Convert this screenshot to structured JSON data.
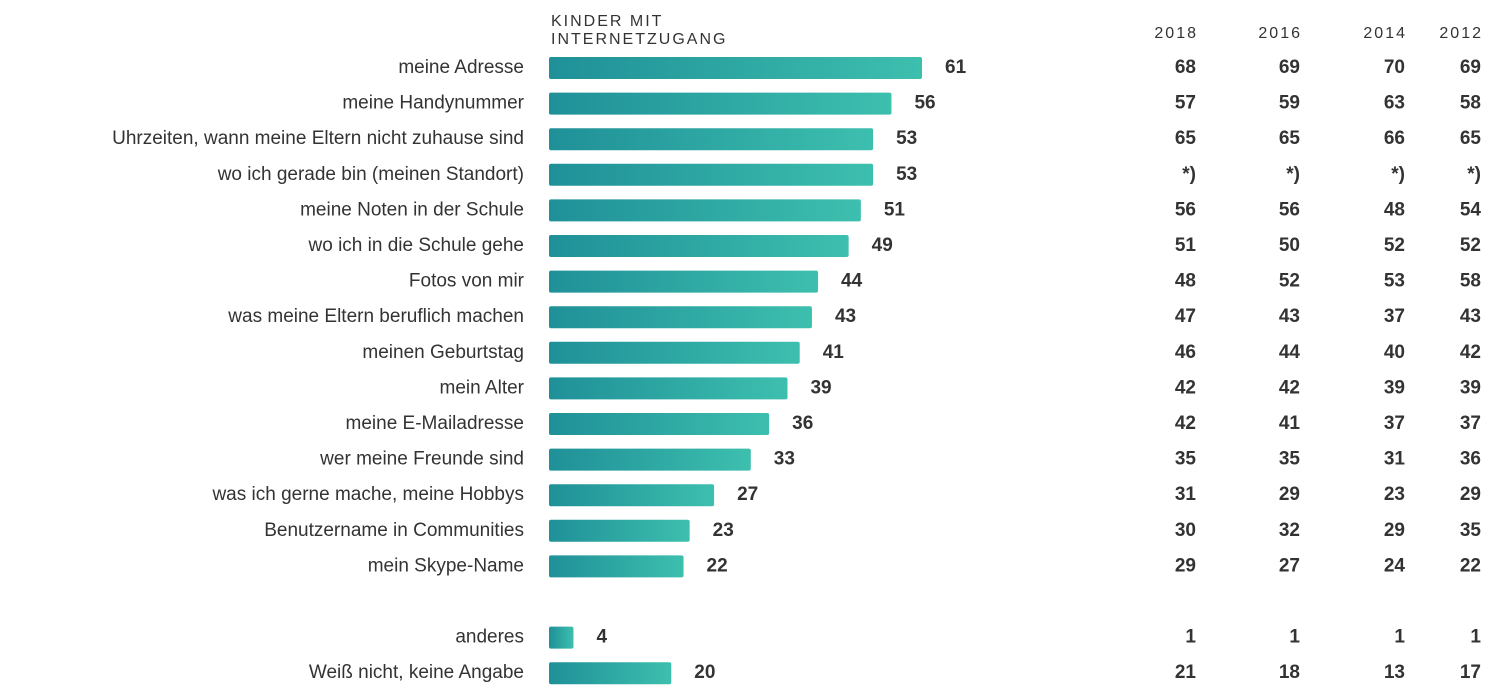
{
  "chart_data": {
    "type": "bar",
    "series_label": [
      "KINDER MIT",
      "INTERNETZUGANG"
    ],
    "categories": [
      "meine Adresse",
      "meine Handynummer",
      "Uhrzeiten, wann meine Eltern nicht zuhause sind",
      "wo ich gerade bin (meinen Standort)",
      "meine Noten in der Schule",
      "wo ich in die Schule gehe",
      "Fotos von mir",
      "was meine Eltern beruflich machen",
      "meinen Geburtstag",
      "mein Alter",
      "meine E-Mailadresse",
      "wer meine Freunde sind",
      "was ich gerne mache, meine Hobbys",
      "Benutzername in Communities",
      "mein Skype-Name",
      "anderes",
      "Weiß nicht, keine Angabe"
    ],
    "values": [
      61,
      56,
      53,
      53,
      51,
      49,
      44,
      43,
      41,
      39,
      36,
      33,
      27,
      23,
      22,
      4,
      20
    ],
    "color": [
      "#1f9098",
      "#3dbfae"
    ],
    "table": {
      "columns": [
        "2018",
        "2016",
        "2014",
        "2012"
      ],
      "rows": [
        [
          68,
          69,
          70,
          69
        ],
        [
          57,
          59,
          63,
          58
        ],
        [
          65,
          65,
          66,
          65
        ],
        [
          "*)",
          "*)",
          "*)",
          "*)"
        ],
        [
          56,
          56,
          48,
          54
        ],
        [
          51,
          50,
          52,
          52
        ],
        [
          48,
          52,
          53,
          58
        ],
        [
          47,
          43,
          37,
          43
        ],
        [
          46,
          44,
          40,
          42
        ],
        [
          42,
          42,
          39,
          39
        ],
        [
          42,
          41,
          37,
          37
        ],
        [
          35,
          35,
          31,
          36
        ],
        [
          31,
          29,
          23,
          29
        ],
        [
          30,
          32,
          29,
          35
        ],
        [
          29,
          27,
          24,
          22
        ],
        [
          1,
          1,
          1,
          1
        ],
        [
          21,
          18,
          13,
          17
        ]
      ]
    }
  }
}
